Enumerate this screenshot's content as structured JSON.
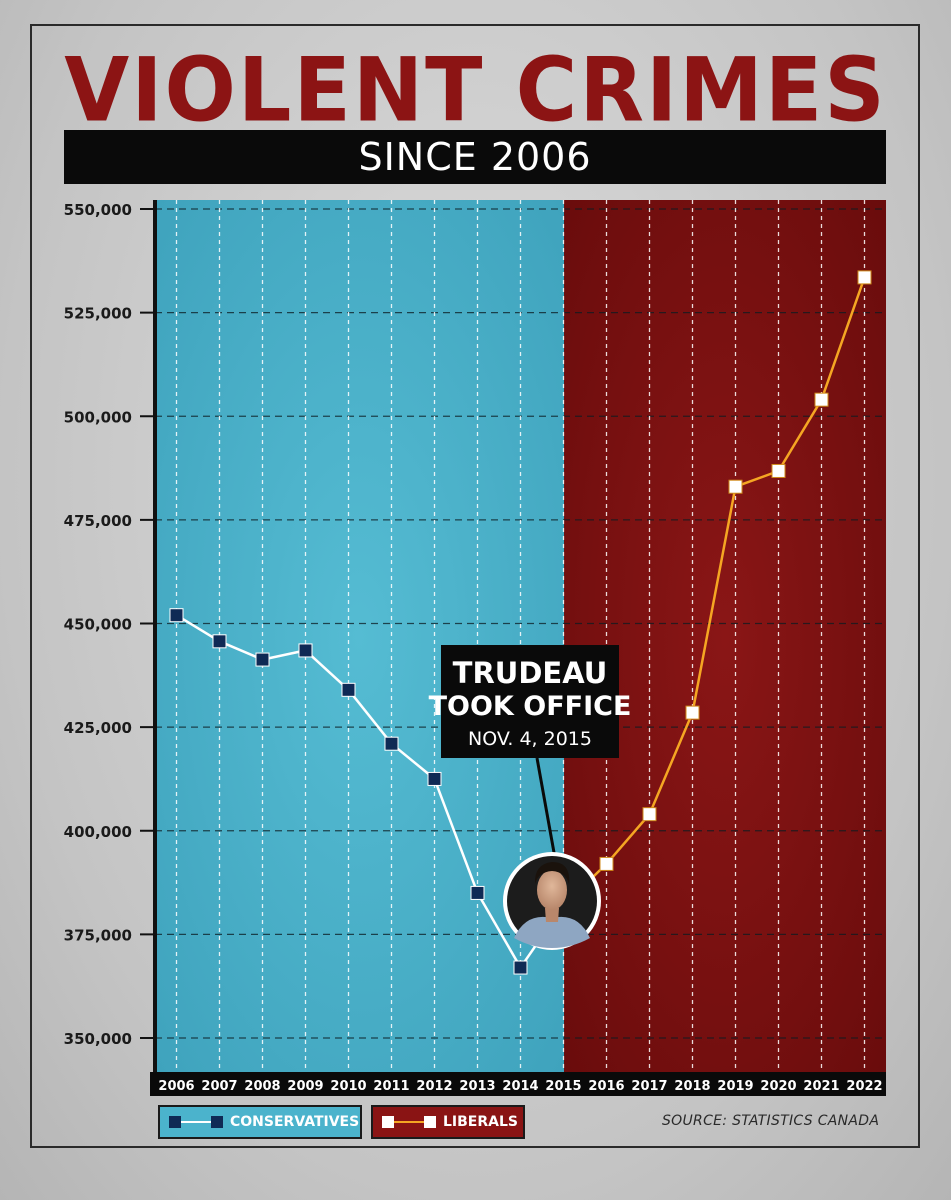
{
  "header": {
    "title": "VIOLENT CRIMES",
    "subtitle": "SINCE 2006"
  },
  "annotation": {
    "line1": "TRUDEAU",
    "line2": "TOOK OFFICE",
    "line3": "NOV. 4, 2015"
  },
  "legend": {
    "conservatives": "CONSERVATIVES",
    "liberals": "LIBERALS"
  },
  "source": "SOURCE: STATISTICS CANADA",
  "colors": {
    "title_red": "#8c1414",
    "conservative_blue": "#4bb3cc",
    "conservative_marker": "#0f2a55",
    "liberal_red": "#7e1010",
    "liberal_line": "#f5a623",
    "liberal_marker": "#ffffff"
  },
  "chart_data": {
    "type": "line",
    "x": [
      "2006",
      "2007",
      "2008",
      "2009",
      "2010",
      "2011",
      "2012",
      "2013",
      "2014",
      "2015",
      "2016",
      "2017",
      "2018",
      "2019",
      "2020",
      "2021",
      "2022"
    ],
    "ylim": [
      345000,
      552000
    ],
    "yticks": [
      350000,
      375000,
      400000,
      425000,
      450000,
      475000,
      500000,
      525000,
      550000
    ],
    "ytick_labels": [
      "350,000",
      "375,000",
      "400,000",
      "425,000",
      "450,000",
      "475,000",
      "500,000",
      "525,000",
      "550,000"
    ],
    "grid": true,
    "legend_position": "bottom-left",
    "series": [
      {
        "name": "CONSERVATIVES",
        "x": [
          "2006",
          "2007",
          "2008",
          "2009",
          "2010",
          "2011",
          "2012",
          "2013",
          "2014"
        ],
        "values": [
          452000,
          445700,
          441300,
          443500,
          434000,
          421000,
          412500,
          385000,
          367000
        ]
      },
      {
        "name": "LIBERALS",
        "x": [
          "2015",
          "2016",
          "2017",
          "2018",
          "2019",
          "2020",
          "2021",
          "2022"
        ],
        "values": [
          382000,
          392000,
          404000,
          428500,
          483000,
          486800,
          504000,
          533500
        ]
      }
    ]
  }
}
